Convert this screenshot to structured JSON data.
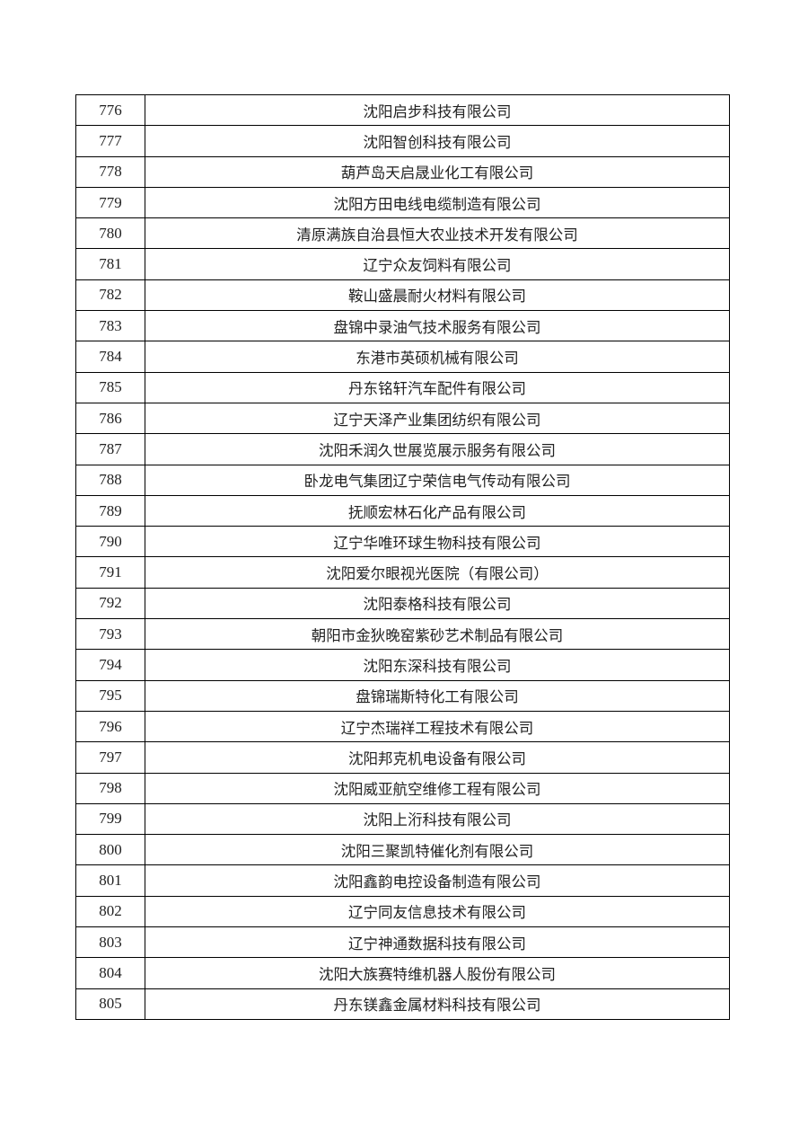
{
  "table": {
    "rows": [
      {
        "no": "776",
        "name": "沈阳启步科技有限公司"
      },
      {
        "no": "777",
        "name": "沈阳智创科技有限公司"
      },
      {
        "no": "778",
        "name": "葫芦岛天启晟业化工有限公司"
      },
      {
        "no": "779",
        "name": "沈阳方田电线电缆制造有限公司"
      },
      {
        "no": "780",
        "name": "清原满族自治县恒大农业技术开发有限公司"
      },
      {
        "no": "781",
        "name": "辽宁众友饲料有限公司"
      },
      {
        "no": "782",
        "name": "鞍山盛晨耐火材料有限公司"
      },
      {
        "no": "783",
        "name": "盘锦中录油气技术服务有限公司"
      },
      {
        "no": "784",
        "name": "东港市英硕机械有限公司"
      },
      {
        "no": "785",
        "name": "丹东铭轩汽车配件有限公司"
      },
      {
        "no": "786",
        "name": "辽宁天泽产业集团纺织有限公司"
      },
      {
        "no": "787",
        "name": "沈阳禾润久世展览展示服务有限公司"
      },
      {
        "no": "788",
        "name": "卧龙电气集团辽宁荣信电气传动有限公司"
      },
      {
        "no": "789",
        "name": "抚顺宏林石化产品有限公司"
      },
      {
        "no": "790",
        "name": "辽宁华唯环球生物科技有限公司"
      },
      {
        "no": "791",
        "name": "沈阳爱尔眼视光医院（有限公司）"
      },
      {
        "no": "792",
        "name": "沈阳泰格科技有限公司"
      },
      {
        "no": "793",
        "name": "朝阳市金狄晚窑紫砂艺术制品有限公司"
      },
      {
        "no": "794",
        "name": "沈阳东深科技有限公司"
      },
      {
        "no": "795",
        "name": "盘锦瑞斯特化工有限公司"
      },
      {
        "no": "796",
        "name": "辽宁杰瑞祥工程技术有限公司"
      },
      {
        "no": "797",
        "name": "沈阳邦克机电设备有限公司"
      },
      {
        "no": "798",
        "name": "沈阳威亚航空维修工程有限公司"
      },
      {
        "no": "799",
        "name": "沈阳上洐科技有限公司"
      },
      {
        "no": "800",
        "name": "沈阳三聚凯特催化剂有限公司"
      },
      {
        "no": "801",
        "name": "沈阳鑫韵电控设备制造有限公司"
      },
      {
        "no": "802",
        "name": "辽宁同友信息技术有限公司"
      },
      {
        "no": "803",
        "name": "辽宁神通数据科技有限公司"
      },
      {
        "no": "804",
        "name": "沈阳大族赛特维机器人股份有限公司"
      },
      {
        "no": "805",
        "name": "丹东镁鑫金属材料科技有限公司"
      }
    ]
  }
}
